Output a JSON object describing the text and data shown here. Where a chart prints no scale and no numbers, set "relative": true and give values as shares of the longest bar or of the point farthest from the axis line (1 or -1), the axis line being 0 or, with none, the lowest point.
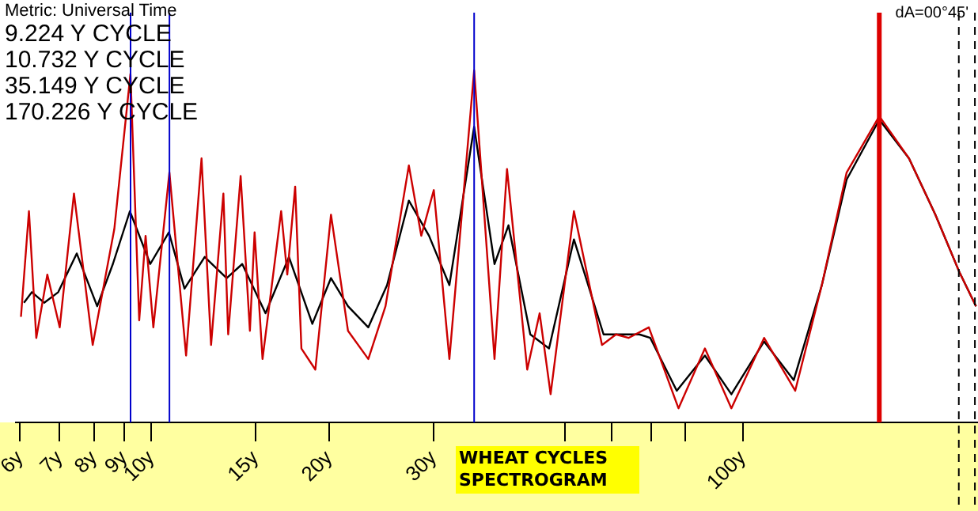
{
  "chart_data": {
    "type": "line",
    "title": "WHEAT CYCLES SPECTROGRAM",
    "relative": true,
    "log": "x",
    "grid": false,
    "legend": false,
    "marker": "none",
    "line_style": "solid",
    "xlim": [
      5.9,
      250
    ],
    "xticks": [
      {
        "value": 6,
        "label": "6y"
      },
      {
        "value": 7,
        "label": "7y"
      },
      {
        "value": 8,
        "label": "8y"
      },
      {
        "value": 9,
        "label": "9y"
      },
      {
        "value": 10,
        "label": "10y"
      },
      {
        "value": 15,
        "label": "15y"
      },
      {
        "value": 20,
        "label": "20y"
      },
      {
        "value": 30,
        "label": "30y"
      },
      {
        "value": 50,
        "label": null
      },
      {
        "value": 60,
        "label": null
      },
      {
        "value": 70,
        "label": null
      },
      {
        "value": 80,
        "label": null
      },
      {
        "value": 100,
        "label": "100y"
      }
    ],
    "annotations": [
      "Metric: Universal Time",
      "9.224 Y CYCLE",
      "10.732 Y CYCLE",
      "35.149 Y CYCLE",
      "170.226 Y CYCLE",
      "dA=00°45'"
    ],
    "ref_lines": [
      {
        "axis": "x",
        "value": 9.224,
        "color": "#0000cc"
      },
      {
        "axis": "x",
        "value": 10.732,
        "color": "#0000cc"
      },
      {
        "axis": "x",
        "value": 35.149,
        "color": "#0000cc"
      },
      {
        "axis": "x",
        "value": 170.226,
        "color": "#dd0000"
      },
      {
        "axis": "x",
        "value": 232,
        "color": "#000000",
        "line_style": "dashed"
      },
      {
        "axis": "x",
        "value": 247,
        "color": "#000000",
        "line_style": "dashed"
      }
    ],
    "series": [
      {
        "color": "#cc0000",
        "x": [
          6.02,
          6.21,
          6.39,
          6.67,
          7.0,
          7.4,
          7.96,
          8.66,
          9.22,
          9.54,
          9.78,
          10.08,
          10.73,
          11.45,
          12.16,
          12.62,
          13.24,
          13.49,
          14.16,
          14.68,
          14.95,
          15.42,
          16.58,
          16.98,
          17.51,
          17.94,
          18.94,
          20.13,
          21.51,
          23.28,
          24.89,
          27.26,
          28.61,
          30.04,
          31.92,
          35.15,
          38.05,
          39.95,
          43.22,
          45.36,
          47.34,
          51.84,
          57.82,
          61.07,
          64.11,
          69.39,
          77.89,
          86.33,
          95.7,
          108.7,
          122.7,
          136.1,
          149.9,
          170.23,
          191.1,
          211.8,
          232.1,
          248.1
        ],
        "values": [
          0.3,
          0.6,
          0.24,
          0.42,
          0.27,
          0.65,
          0.22,
          0.55,
          0.99,
          0.29,
          0.53,
          0.27,
          0.71,
          0.19,
          0.75,
          0.22,
          0.65,
          0.25,
          0.7,
          0.26,
          0.54,
          0.18,
          0.6,
          0.42,
          0.67,
          0.21,
          0.15,
          0.59,
          0.26,
          0.18,
          0.33,
          0.73,
          0.53,
          0.66,
          0.18,
          1.0,
          0.18,
          0.72,
          0.15,
          0.31,
          0.08,
          0.6,
          0.22,
          0.25,
          0.24,
          0.27,
          0.04,
          0.21,
          0.04,
          0.24,
          0.09,
          0.39,
          0.71,
          0.87,
          0.75,
          0.59,
          0.43,
          0.33
        ]
      },
      {
        "color": "#000000",
        "x": [
          6.09,
          6.28,
          6.59,
          6.96,
          7.48,
          8.1,
          8.61,
          9.2,
          9.96,
          10.71,
          11.38,
          12.31,
          13.41,
          14.25,
          15.6,
          17.09,
          18.72,
          20.13,
          21.51,
          23.28,
          25.04,
          27.26,
          29.49,
          31.92,
          35.15,
          38.05,
          40.18,
          43.74,
          47.05,
          51.84,
          58.18,
          66.88,
          69.79,
          77.37,
          86.33,
          95.7,
          108.7,
          122.0,
          136.1,
          149.9,
          170.23,
          191.1,
          211.8,
          232.1,
          248.1
        ],
        "values": [
          0.34,
          0.37,
          0.34,
          0.37,
          0.48,
          0.33,
          0.45,
          0.6,
          0.45,
          0.54,
          0.38,
          0.47,
          0.41,
          0.45,
          0.31,
          0.47,
          0.28,
          0.41,
          0.33,
          0.27,
          0.39,
          0.63,
          0.53,
          0.39,
          0.84,
          0.45,
          0.56,
          0.25,
          0.21,
          0.52,
          0.25,
          0.25,
          0.24,
          0.09,
          0.19,
          0.08,
          0.23,
          0.12,
          0.39,
          0.69,
          0.86,
          0.75,
          0.59,
          0.43,
          0.33
        ]
      }
    ]
  }
}
